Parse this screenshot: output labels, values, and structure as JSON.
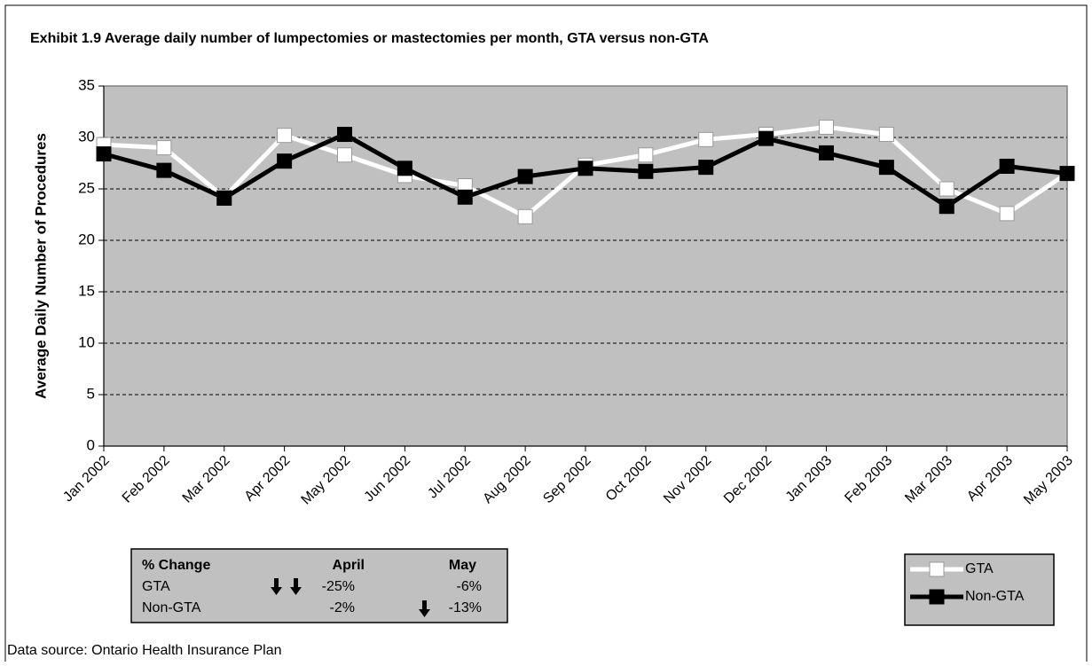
{
  "chart_data": {
    "type": "line",
    "title": "Exhibit 1.9 Average daily number of lumpectomies or mastectomies per month, GTA versus non-GTA",
    "y_label": "Average Daily Number of Procedures",
    "categories": [
      "Jan 2002",
      "Feb 2002",
      "Mar 2002",
      "Apr 2002",
      "May 2002",
      "Jun 2002",
      "Jul 2002",
      "Aug 2002",
      "Sep 2002",
      "Oct 2002",
      "Nov 2002",
      "Dec 2002",
      "Jan 2003",
      "Feb 2003",
      "Mar 2003",
      "Apr 2003",
      "May 2003"
    ],
    "series": [
      {
        "name": "GTA",
        "color": "#ffffff",
        "values": [
          29.3,
          29.0,
          24.2,
          30.2,
          28.3,
          26.3,
          25.3,
          22.3,
          27.3,
          28.3,
          29.8,
          30.3,
          31.0,
          30.3,
          25.0,
          22.6,
          26.5
        ]
      },
      {
        "name": "Non-GTA",
        "color": "#000000",
        "values": [
          28.4,
          26.8,
          24.1,
          27.7,
          30.3,
          27.0,
          24.2,
          26.2,
          27.0,
          26.7,
          27.1,
          29.9,
          28.5,
          27.1,
          23.3,
          27.2,
          26.5
        ]
      }
    ],
    "ylim": [
      0,
      35
    ],
    "yticks": [
      0,
      5,
      10,
      15,
      20,
      25,
      30,
      35
    ],
    "grid": true,
    "legend": "bottom-right",
    "background": "#c0c0c0"
  },
  "table": {
    "header": [
      "% Change",
      "April",
      "May"
    ],
    "rows": [
      [
        "GTA",
        "-25%",
        "-6%"
      ],
      [
        "Non-GTA",
        "-2%",
        "-13%"
      ]
    ]
  },
  "source": "Data source: Ontario Health Insurance Plan"
}
